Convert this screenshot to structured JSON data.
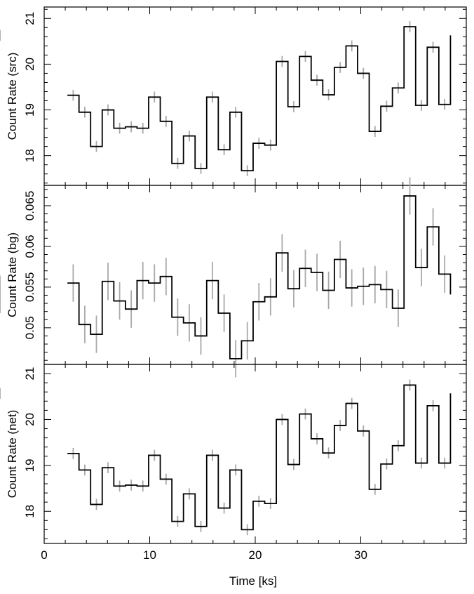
{
  "chart_data": {
    "type": "line",
    "x_axis": {
      "label": "Time [ks]",
      "range": [
        0,
        40
      ],
      "ticks": [
        0,
        10,
        20,
        30
      ],
      "tick_labels": [
        "0",
        "10",
        "20",
        "30"
      ]
    },
    "bin_edges": [
      2.2,
      3.3,
      4.4,
      5.5,
      6.6,
      7.7,
      8.8,
      9.9,
      11.0,
      12.1,
      13.2,
      14.3,
      15.4,
      16.5,
      17.6,
      18.7,
      19.8,
      20.9,
      22.0,
      23.1,
      24.2,
      25.3,
      26.4,
      27.5,
      28.6,
      29.7,
      30.8,
      31.9,
      33.0,
      34.1,
      35.2,
      36.3,
      37.4,
      38.5
    ],
    "panels": [
      {
        "name": "src",
        "ylabel": "Count Rate (src)",
        "ylim": [
          17.35,
          21.25
        ],
        "yticks": [
          18,
          19,
          20,
          21
        ],
        "ytick_labels": [
          "18",
          "19",
          "20",
          "21"
        ],
        "values": [
          19.32,
          18.95,
          18.2,
          19.0,
          18.6,
          18.63,
          18.6,
          19.28,
          18.75,
          17.83,
          18.43,
          17.72,
          19.28,
          18.13,
          18.95,
          17.67,
          18.27,
          18.23,
          20.06,
          19.07,
          20.17,
          19.65,
          19.33,
          19.93,
          20.4,
          19.8,
          18.53,
          19.08,
          19.48,
          20.82,
          19.1,
          20.37,
          19.12,
          20.63
        ],
        "errors": [
          0.12,
          0.12,
          0.12,
          0.12,
          0.12,
          0.12,
          0.12,
          0.12,
          0.12,
          0.12,
          0.12,
          0.12,
          0.12,
          0.12,
          0.12,
          0.12,
          0.12,
          0.12,
          0.12,
          0.12,
          0.12,
          0.12,
          0.12,
          0.12,
          0.12,
          0.12,
          0.12,
          0.12,
          0.12,
          0.12,
          0.12,
          0.12,
          0.12,
          0.12
        ]
      },
      {
        "name": "bg",
        "ylabel": "Count Rate (bg)",
        "ylim": [
          0.0455,
          0.0675
        ],
        "yticks": [
          0.05,
          0.055,
          0.06,
          0.065
        ],
        "ytick_labels": [
          "0.05",
          "0.055",
          "0.06",
          "0.065"
        ],
        "values": [
          0.0555,
          0.0504,
          0.0492,
          0.0557,
          0.0533,
          0.0523,
          0.0558,
          0.0555,
          0.0563,
          0.0513,
          0.0506,
          0.049,
          0.0558,
          0.0518,
          0.0462,
          0.0484,
          0.0532,
          0.0538,
          0.0592,
          0.0548,
          0.0573,
          0.0568,
          0.0546,
          0.0584,
          0.0549,
          0.0551,
          0.0553,
          0.0547,
          0.0524,
          0.0662,
          0.0574,
          0.0624,
          0.0566,
          0.0541
        ],
        "errors": [
          0.0023,
          0.0023,
          0.0023,
          0.0023,
          0.0023,
          0.0023,
          0.0023,
          0.0023,
          0.0023,
          0.0023,
          0.0023,
          0.0023,
          0.0023,
          0.0023,
          0.0023,
          0.0023,
          0.0023,
          0.0023,
          0.0023,
          0.0023,
          0.0023,
          0.0023,
          0.0023,
          0.0023,
          0.0023,
          0.0023,
          0.0023,
          0.0023,
          0.0023,
          0.0023,
          0.0023,
          0.0023,
          0.0023,
          0.0023
        ]
      },
      {
        "name": "net",
        "ylabel": "Count Rate (net)",
        "ylim": [
          17.3,
          21.2
        ],
        "yticks": [
          18,
          19,
          20,
          21
        ],
        "ytick_labels": [
          "18",
          "19",
          "20",
          "21"
        ],
        "values": [
          19.26,
          18.9,
          18.15,
          18.95,
          18.55,
          18.57,
          18.55,
          19.22,
          18.7,
          17.78,
          18.38,
          17.67,
          19.22,
          18.07,
          18.9,
          17.6,
          18.22,
          18.17,
          20.0,
          19.02,
          20.12,
          19.58,
          19.27,
          19.87,
          20.35,
          19.75,
          18.48,
          19.03,
          19.43,
          20.75,
          19.05,
          20.3,
          19.05,
          20.57
        ],
        "errors": [
          0.12,
          0.12,
          0.12,
          0.12,
          0.12,
          0.12,
          0.12,
          0.12,
          0.12,
          0.12,
          0.12,
          0.12,
          0.12,
          0.12,
          0.12,
          0.12,
          0.12,
          0.12,
          0.12,
          0.12,
          0.12,
          0.12,
          0.12,
          0.12,
          0.12,
          0.12,
          0.12,
          0.12,
          0.12,
          0.12,
          0.12,
          0.12,
          0.12,
          0.12
        ]
      }
    ],
    "colors": {
      "line": "#000000",
      "error_bar": "#a9a9a9"
    },
    "grid": false,
    "legend": "none"
  }
}
